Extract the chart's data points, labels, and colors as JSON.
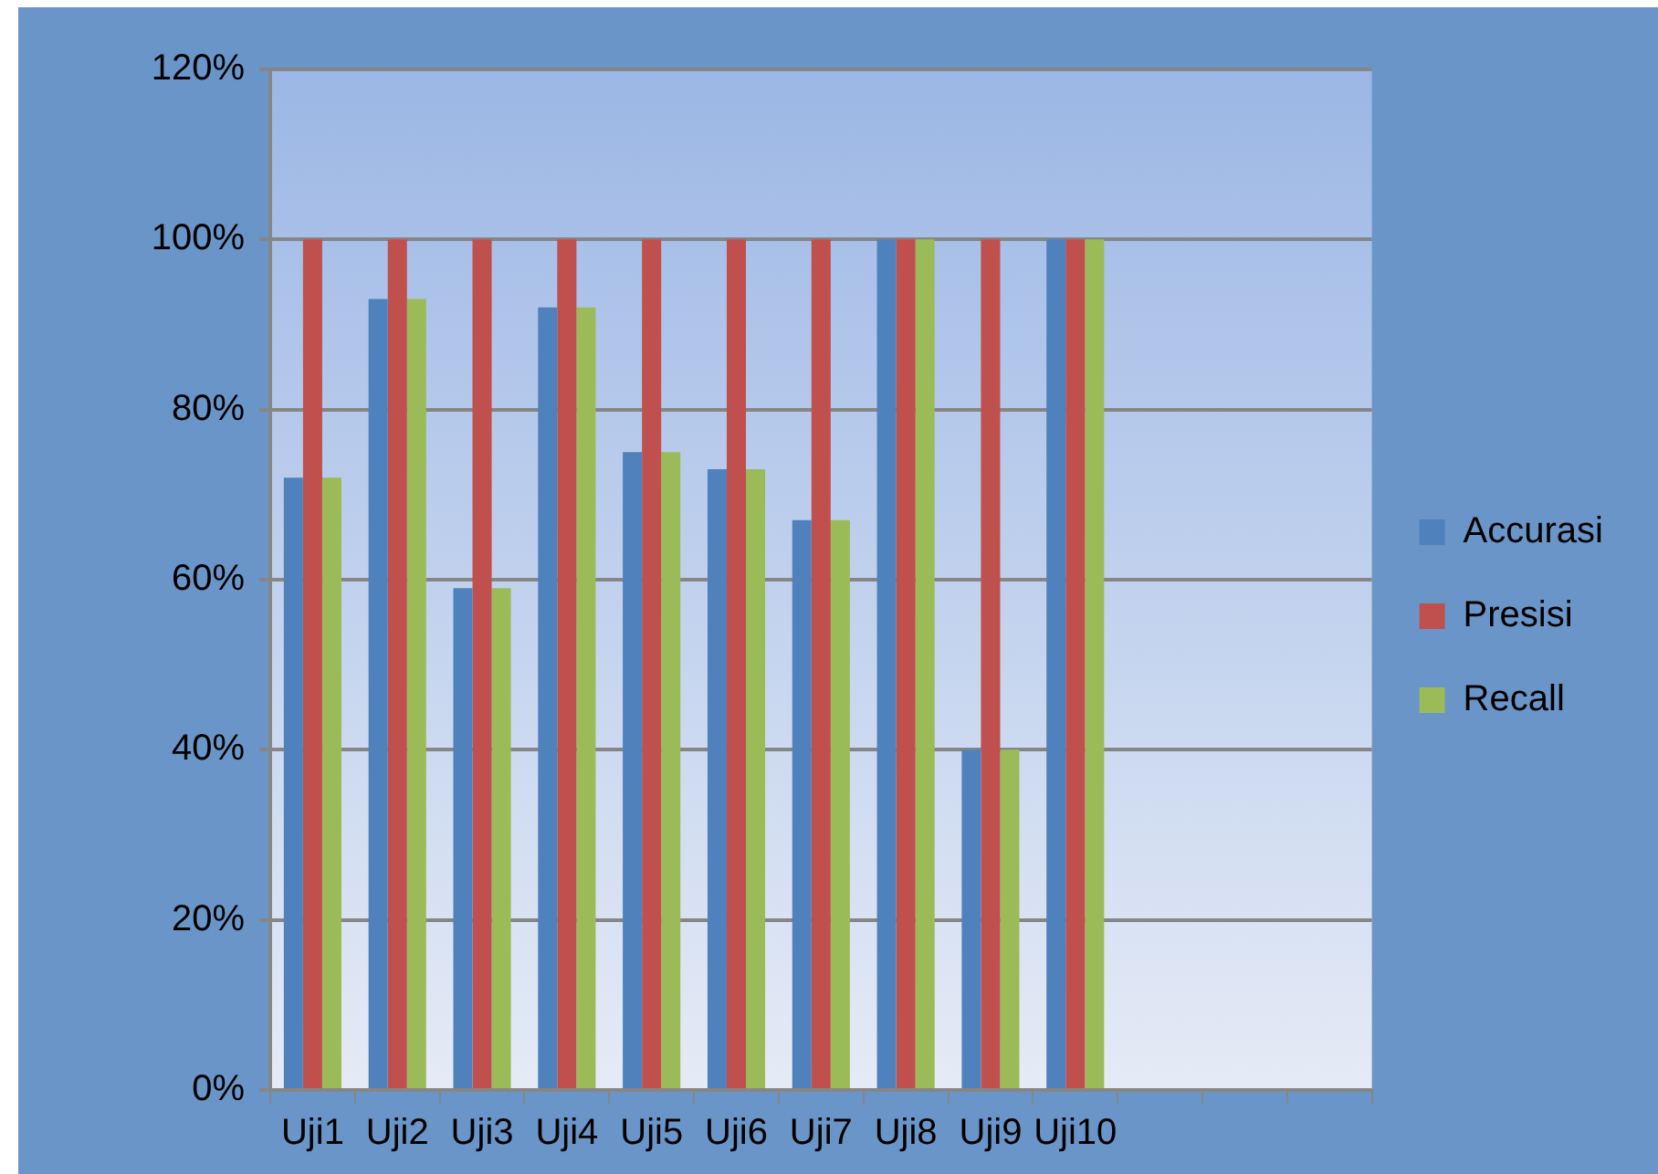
{
  "chart_data": {
    "type": "bar",
    "categories": [
      "Uji1",
      "Uji2",
      "Uji3",
      "Uji4",
      "Uji5",
      "Uji6",
      "Uji7",
      "Uji8",
      "Uji9",
      "Uji10",
      null,
      null,
      null
    ],
    "series": [
      {
        "name": "Accurasi",
        "color": "#4f81bd",
        "values": [
          72,
          93,
          59,
          92,
          75,
          73,
          67,
          100,
          40,
          100,
          null,
          null,
          null
        ]
      },
      {
        "name": "Presisi",
        "color": "#c0504d",
        "values": [
          100,
          100,
          100,
          100,
          100,
          100,
          100,
          100,
          100,
          100,
          null,
          null,
          null
        ]
      },
      {
        "name": "Recall",
        "color": "#9bbb59",
        "values": [
          72,
          93,
          59,
          92,
          75,
          73,
          67,
          100,
          40,
          100,
          null,
          null,
          null
        ]
      }
    ],
    "ylim": [
      0,
      120
    ],
    "yticks": [
      {
        "value": 0,
        "label": "0%"
      },
      {
        "value": 20,
        "label": "20%"
      },
      {
        "value": 40,
        "label": "40%"
      },
      {
        "value": 60,
        "label": "60%"
      },
      {
        "value": 80,
        "label": "80%"
      },
      {
        "value": 100,
        "label": "100%"
      },
      {
        "value": 120,
        "label": "120%"
      }
    ],
    "grid": "y",
    "legend": "right"
  }
}
